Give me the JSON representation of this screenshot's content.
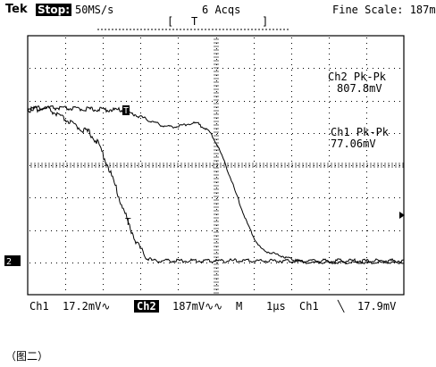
{
  "status_bar": {
    "brand": "Tek",
    "mode": "Stop:",
    "sample_rate": "50MS/s",
    "acquisitions": "6 Acqs",
    "fine_scale": "Fine Scale: 187m"
  },
  "trigger_bracket": {
    "left": "[",
    "marker": "T",
    "right": "]"
  },
  "measurements": {
    "ch2_label": "Ch2 Pk-Pk",
    "ch2_value": "807.8mV",
    "ch1_label": "Ch1 Pk-Pk",
    "ch1_value": "77.06mV"
  },
  "markers": {
    "trace_marker": "T",
    "ch_ground_marker": "2"
  },
  "settings_bar": {
    "ch1": "Ch1",
    "ch1_scale": "17.2mV∿",
    "ch2": "Ch2",
    "ch2_scale": "187mV∿∿",
    "m": "M",
    "timebase": "1μs",
    "trigger_source": "Ch1",
    "trigger_slope": "╲",
    "trigger_level": "17.9mV"
  },
  "caption": "（图二）",
  "colors": {
    "trace": "#000000",
    "background": "#ffffff"
  }
}
